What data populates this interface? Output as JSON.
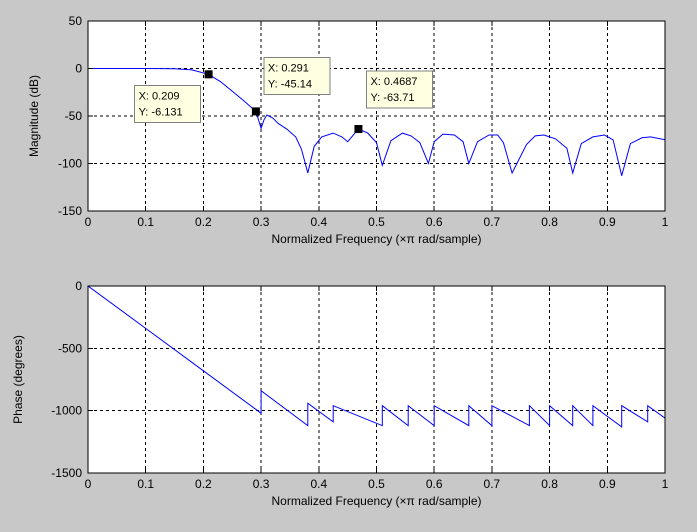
{
  "chart_data": [
    {
      "type": "line",
      "xlabel": "Normalized Frequency  (×π rad/sample)",
      "ylabel": "Magnitude (dB)",
      "xlim": [
        0,
        1
      ],
      "ylim": [
        -150,
        50
      ],
      "xticks": [
        0,
        0.1,
        0.2,
        0.3,
        0.4,
        0.5,
        0.6,
        0.7,
        0.8,
        0.9,
        1
      ],
      "xtick_labels": [
        "0",
        "0.1",
        "0.2",
        "0.3",
        "0.4",
        "0.5",
        "0.6",
        "0.7",
        "0.8",
        "0.9",
        "1"
      ],
      "yticks": [
        -150,
        -100,
        -50,
        0,
        50
      ],
      "ytick_labels": [
        "-150",
        "-100",
        "-50",
        "0",
        "50"
      ],
      "grid": true,
      "line_color": "#0000ff",
      "series": [
        {
          "x": [
            0,
            0.05,
            0.1,
            0.15,
            0.18,
            0.209,
            0.23,
            0.25,
            0.27,
            0.291,
            0.3,
            0.305,
            0.31,
            0.32,
            0.33,
            0.345,
            0.36,
            0.37,
            0.381,
            0.392,
            0.405,
            0.425,
            0.44,
            0.45,
            0.4687,
            0.485,
            0.5,
            0.51,
            0.525,
            0.545,
            0.56,
            0.575,
            0.59,
            0.6,
            0.615,
            0.635,
            0.65,
            0.66,
            0.675,
            0.695,
            0.71,
            0.72,
            0.735,
            0.76,
            0.775,
            0.79,
            0.81,
            0.83,
            0.84,
            0.855,
            0.875,
            0.895,
            0.91,
            0.925,
            0.94,
            0.96,
            0.975,
            1.0
          ],
          "y": [
            0,
            0,
            0,
            -0.3,
            -1.5,
            -6.131,
            -14,
            -24,
            -34,
            -45.14,
            -63,
            -54,
            -49,
            -52,
            -58,
            -64,
            -72,
            -85,
            -110,
            -82,
            -72,
            -68,
            -72,
            -77,
            -63.71,
            -68,
            -78,
            -102,
            -76,
            -68,
            -71,
            -78,
            -100,
            -77,
            -69,
            -70,
            -77,
            -100,
            -77,
            -70,
            -70,
            -78,
            -110,
            -80,
            -71,
            -70,
            -74,
            -84,
            -110,
            -79,
            -72,
            -70,
            -75,
            -113,
            -79,
            -73,
            -72,
            -75
          ]
        }
      ],
      "datatips": [
        {
          "x": 0.209,
          "y": -6.131,
          "x_label": "X: 0.209",
          "y_label": "Y: -6.131"
        },
        {
          "x": 0.291,
          "y": -45.14,
          "x_label": "X: 0.291",
          "y_label": "Y: -45.14"
        },
        {
          "x": 0.4687,
          "y": -63.71,
          "x_label": "X: 0.4687",
          "y_label": "Y: -63.71"
        }
      ]
    },
    {
      "type": "line",
      "xlabel": "Normalized Frequency  (×π rad/sample)",
      "ylabel": "Phase (degrees)",
      "xlim": [
        0,
        1
      ],
      "ylim": [
        -1500,
        0
      ],
      "xticks": [
        0,
        0.1,
        0.2,
        0.3,
        0.4,
        0.5,
        0.6,
        0.7,
        0.8,
        0.9,
        1
      ],
      "xtick_labels": [
        "0",
        "0.1",
        "0.2",
        "0.3",
        "0.4",
        "0.5",
        "0.6",
        "0.7",
        "0.8",
        "0.9",
        "1"
      ],
      "yticks": [
        -1500,
        -1000,
        -500,
        0
      ],
      "ytick_labels": [
        "-1500",
        "-1000",
        "-500",
        "0"
      ],
      "grid": true,
      "line_color": "#0000ff",
      "series": [
        {
          "x": [
            0,
            0.1,
            0.2,
            0.3,
            0.3,
            0.381,
            0.381,
            0.425,
            0.425,
            0.51,
            0.51,
            0.555,
            0.555,
            0.6,
            0.6,
            0.66,
            0.66,
            0.7,
            0.7,
            0.765,
            0.765,
            0.8,
            0.8,
            0.84,
            0.84,
            0.875,
            0.875,
            0.925,
            0.925,
            0.97,
            0.97,
            1.0
          ],
          "y": [
            0,
            -340,
            -680,
            -1020,
            -840,
            -1120,
            -940,
            -1090,
            -960,
            -1120,
            -960,
            -1120,
            -960,
            -1120,
            -960,
            -1120,
            -960,
            -1120,
            -960,
            -1120,
            -960,
            -1120,
            -960,
            -1120,
            -960,
            -1120,
            -960,
            -1130,
            -960,
            -1090,
            -960,
            -1060
          ]
        }
      ]
    }
  ]
}
